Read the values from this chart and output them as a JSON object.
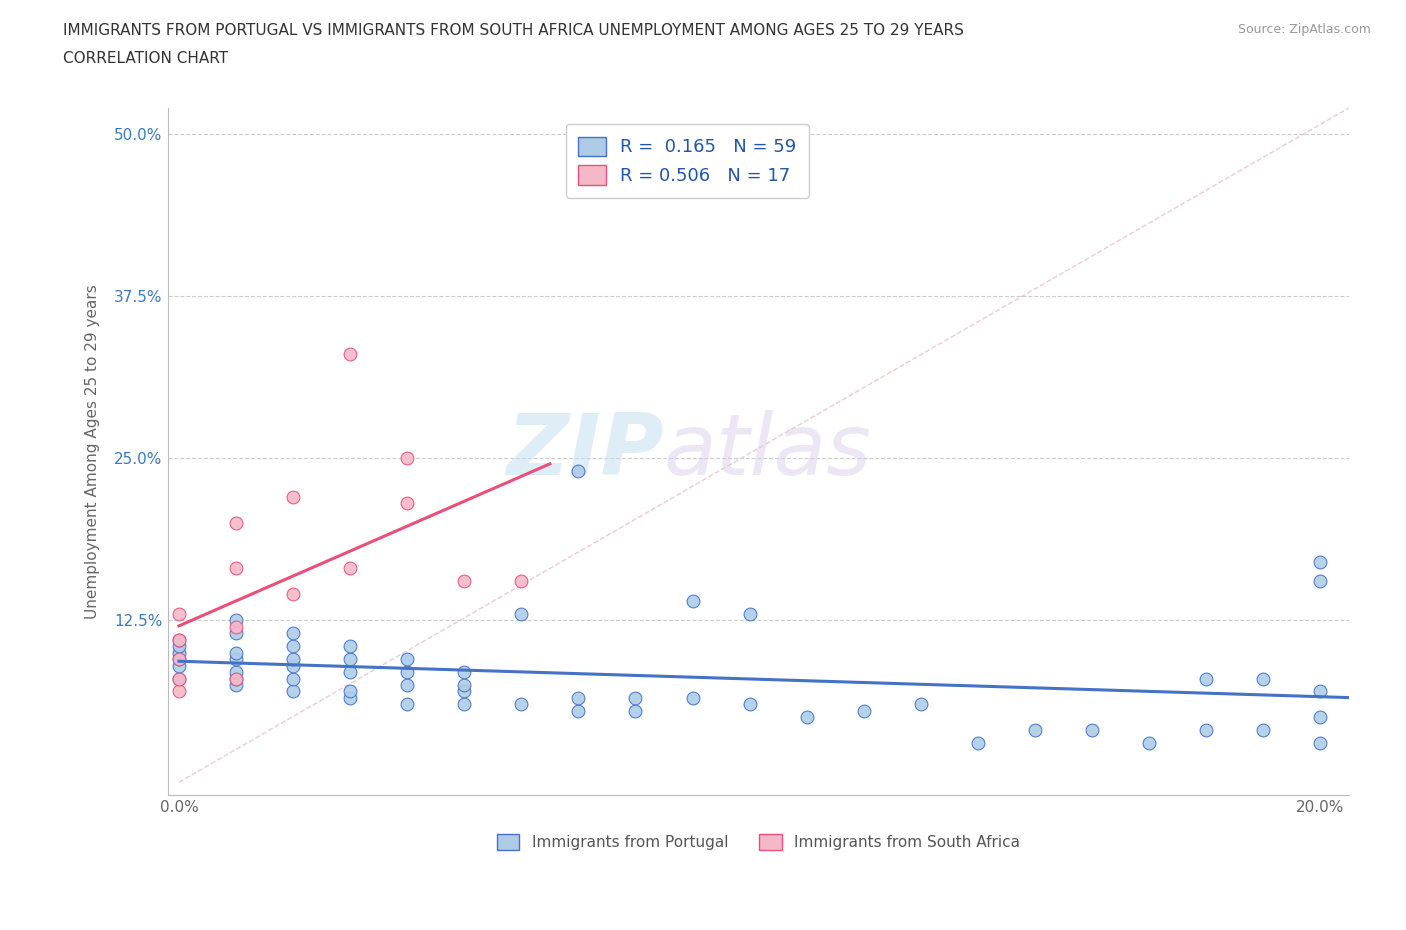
{
  "title_line1": "IMMIGRANTS FROM PORTUGAL VS IMMIGRANTS FROM SOUTH AFRICA UNEMPLOYMENT AMONG AGES 25 TO 29 YEARS",
  "title_line2": "CORRELATION CHART",
  "source": "Source: ZipAtlas.com",
  "ylabel": "Unemployment Among Ages 25 to 29 years",
  "xlim": [
    -0.002,
    0.205
  ],
  "ylim": [
    -0.01,
    0.52
  ],
  "xticks": [
    0.0,
    0.05,
    0.1,
    0.15,
    0.2
  ],
  "xtick_labels": [
    "0.0%",
    "",
    "",
    "",
    "20.0%"
  ],
  "yticks": [
    0.0,
    0.125,
    0.25,
    0.375,
    0.5
  ],
  "ytick_labels": [
    "",
    "12.5%",
    "25.0%",
    "37.5%",
    "50.0%"
  ],
  "r_portugal": 0.165,
  "n_portugal": 59,
  "r_south_africa": 0.506,
  "n_south_africa": 17,
  "color_portugal": "#aecce8",
  "color_south_africa": "#f5b8c8",
  "line_color_portugal": "#4472c4",
  "line_color_south_africa": "#e8507a",
  "diagonal_color": "#e8c0c0",
  "watermark_zip": "ZIP",
  "watermark_atlas": "atlas",
  "portugal_x": [
    0.0,
    0.0,
    0.0,
    0.0,
    0.0,
    0.0,
    0.01,
    0.01,
    0.01,
    0.01,
    0.01,
    0.01,
    0.01,
    0.02,
    0.02,
    0.02,
    0.02,
    0.02,
    0.02,
    0.03,
    0.03,
    0.03,
    0.03,
    0.03,
    0.04,
    0.04,
    0.04,
    0.04,
    0.05,
    0.05,
    0.05,
    0.05,
    0.06,
    0.06,
    0.07,
    0.07,
    0.07,
    0.08,
    0.08,
    0.09,
    0.09,
    0.1,
    0.1,
    0.11,
    0.12,
    0.13,
    0.14,
    0.15,
    0.16,
    0.17,
    0.18,
    0.18,
    0.19,
    0.19,
    0.2,
    0.2,
    0.2,
    0.2,
    0.2
  ],
  "portugal_y": [
    0.08,
    0.09,
    0.095,
    0.1,
    0.105,
    0.11,
    0.075,
    0.08,
    0.085,
    0.095,
    0.1,
    0.115,
    0.125,
    0.07,
    0.08,
    0.09,
    0.095,
    0.105,
    0.115,
    0.065,
    0.07,
    0.085,
    0.095,
    0.105,
    0.06,
    0.075,
    0.085,
    0.095,
    0.06,
    0.07,
    0.075,
    0.085,
    0.06,
    0.13,
    0.055,
    0.065,
    0.24,
    0.055,
    0.065,
    0.065,
    0.14,
    0.06,
    0.13,
    0.05,
    0.055,
    0.06,
    0.03,
    0.04,
    0.04,
    0.03,
    0.04,
    0.08,
    0.04,
    0.08,
    0.03,
    0.05,
    0.07,
    0.155,
    0.17
  ],
  "south_africa_x": [
    0.0,
    0.0,
    0.0,
    0.0,
    0.0,
    0.01,
    0.01,
    0.01,
    0.01,
    0.02,
    0.02,
    0.03,
    0.03,
    0.04,
    0.04,
    0.05,
    0.06
  ],
  "south_africa_y": [
    0.07,
    0.08,
    0.095,
    0.11,
    0.13,
    0.08,
    0.12,
    0.165,
    0.2,
    0.145,
    0.22,
    0.165,
    0.33,
    0.215,
    0.25,
    0.155,
    0.155
  ],
  "legend_portugal": "Immigrants from Portugal",
  "legend_south_africa": "Immigrants from South Africa"
}
